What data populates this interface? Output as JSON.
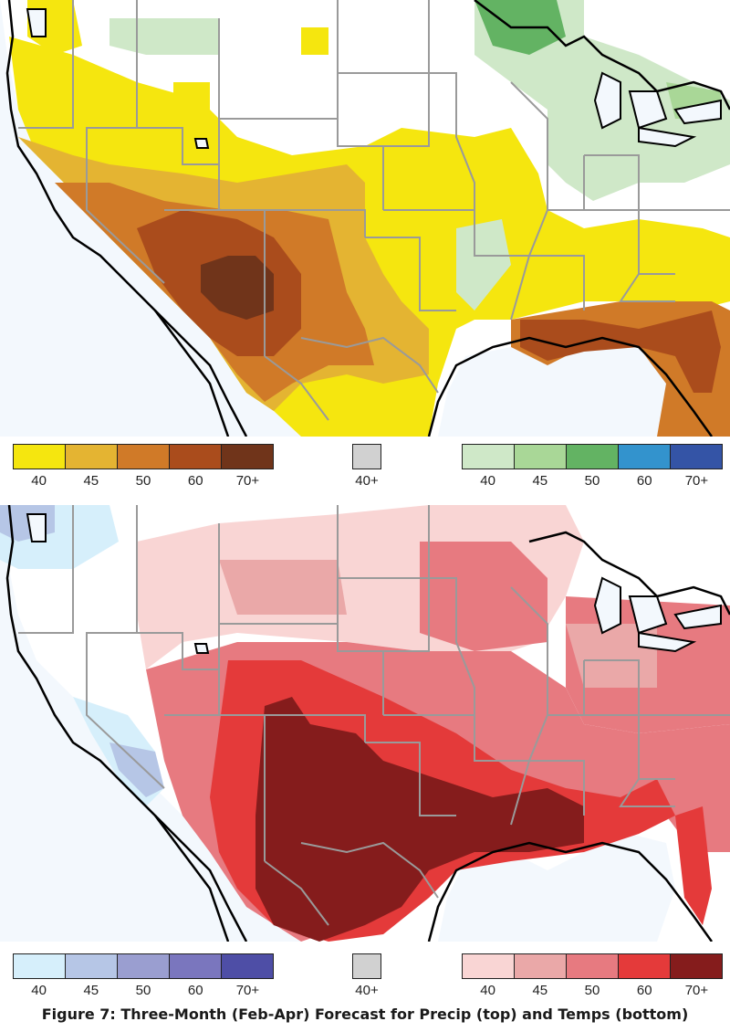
{
  "maps": {
    "top": {
      "subject": "Precip"
    },
    "bottom": {
      "subject": "Temps"
    }
  },
  "legends": {
    "top": {
      "below": {
        "labels": [
          "40",
          "45",
          "50",
          "60",
          "70+"
        ],
        "colors": [
          "#f5e60f",
          "#e4b432",
          "#d07a28",
          "#aa4c1c",
          "#70341a"
        ]
      },
      "normal": {
        "labels": [
          "40+"
        ],
        "colors": [
          "#d1d1d1"
        ]
      },
      "above": {
        "labels": [
          "40",
          "45",
          "50",
          "60",
          "70+"
        ],
        "colors": [
          "#cfe8c8",
          "#a9d797",
          "#63b363",
          "#3393cd",
          "#3454a6"
        ]
      }
    },
    "bottom": {
      "below": {
        "labels": [
          "40",
          "45",
          "50",
          "60",
          "70+"
        ],
        "colors": [
          "#d6effb",
          "#b6c6e6",
          "#9a9ed0",
          "#7a76be",
          "#4e4ea6"
        ]
      },
      "normal": {
        "labels": [
          "40+"
        ],
        "colors": [
          "#d1d1d1"
        ]
      },
      "above": {
        "labels": [
          "40",
          "45",
          "50",
          "60",
          "70+"
        ],
        "colors": [
          "#f9d5d4",
          "#eaa8a8",
          "#e77a80",
          "#e43a3a",
          "#851c1c"
        ]
      }
    }
  },
  "caption": "Figure 7: Three-Month (Feb-Apr) Forecast for Precip (top) and Temps (bottom)"
}
